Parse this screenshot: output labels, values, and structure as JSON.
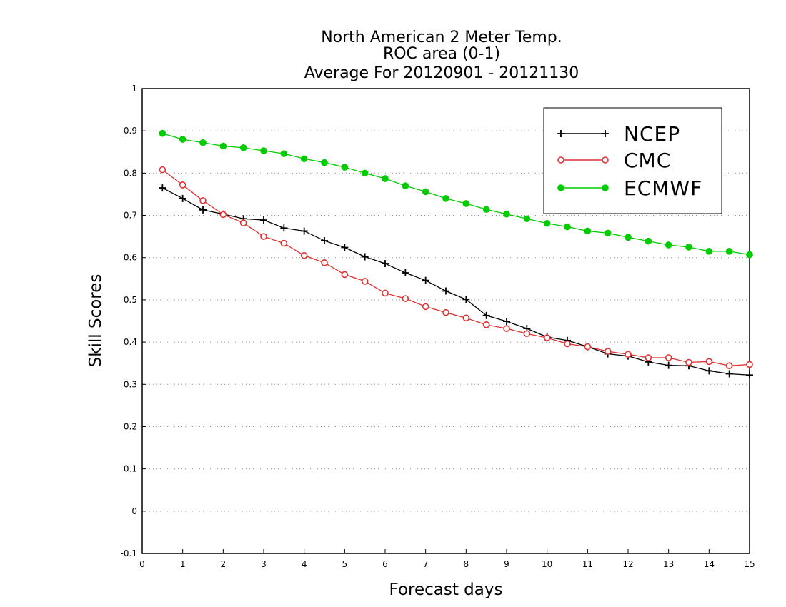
{
  "chart_data": {
    "type": "line",
    "title_lines": [
      "North American 2 Meter Temp.",
      "ROC area (0-1)",
      "Average For 20120901 - 20121130"
    ],
    "xlabel": "Forecast days",
    "ylabel": "Skill Scores",
    "xlim": [
      0,
      15
    ],
    "ylim": [
      -0.1,
      1
    ],
    "x_ticks": [
      "0",
      "1",
      "2",
      "3",
      "4",
      "5",
      "6",
      "7",
      "8",
      "9",
      "10",
      "11",
      "12",
      "13",
      "14",
      "15"
    ],
    "y_ticks": [
      "-0.1",
      "0",
      "0.1",
      "0.2",
      "0.3",
      "0.4",
      "0.5",
      "0.6",
      "0.7",
      "0.8",
      "0.9",
      "1"
    ],
    "grid": "horizontal dotted",
    "legend_position": "top-right",
    "x": [
      0.5,
      1,
      1.5,
      2,
      2.5,
      3,
      3.5,
      4,
      4.5,
      5,
      5.5,
      6,
      6.5,
      7,
      7.5,
      8,
      8.5,
      9,
      9.5,
      10,
      10.5,
      11,
      11.5,
      12,
      12.5,
      13,
      13.5,
      14,
      14.5,
      15
    ],
    "series": [
      {
        "name": "NCEP",
        "color": "#000000",
        "marker": "plus",
        "values": [
          0.765,
          0.74,
          0.713,
          0.703,
          0.692,
          0.689,
          0.67,
          0.663,
          0.64,
          0.624,
          0.602,
          0.586,
          0.564,
          0.546,
          0.521,
          0.501,
          0.463,
          0.449,
          0.432,
          0.412,
          0.404,
          0.389,
          0.372,
          0.367,
          0.353,
          0.345,
          0.344,
          0.332,
          0.325,
          0.322
        ]
      },
      {
        "name": "CMC",
        "color": "#e03030",
        "marker": "open-circle",
        "values": [
          0.808,
          0.772,
          0.735,
          0.702,
          0.682,
          0.65,
          0.634,
          0.605,
          0.588,
          0.56,
          0.544,
          0.516,
          0.503,
          0.484,
          0.47,
          0.457,
          0.441,
          0.432,
          0.42,
          0.41,
          0.396,
          0.389,
          0.378,
          0.371,
          0.363,
          0.363,
          0.352,
          0.354,
          0.344,
          0.347
        ]
      },
      {
        "name": "ECMWF",
        "color": "#00cc00",
        "marker": "filled-circle",
        "values": [
          0.894,
          0.88,
          0.872,
          0.864,
          0.86,
          0.853,
          0.846,
          0.834,
          0.825,
          0.814,
          0.8,
          0.787,
          0.77,
          0.756,
          0.74,
          0.728,
          0.714,
          0.703,
          0.692,
          0.681,
          0.673,
          0.663,
          0.658,
          0.648,
          0.639,
          0.63,
          0.625,
          0.615,
          0.615,
          0.607
        ]
      }
    ]
  }
}
